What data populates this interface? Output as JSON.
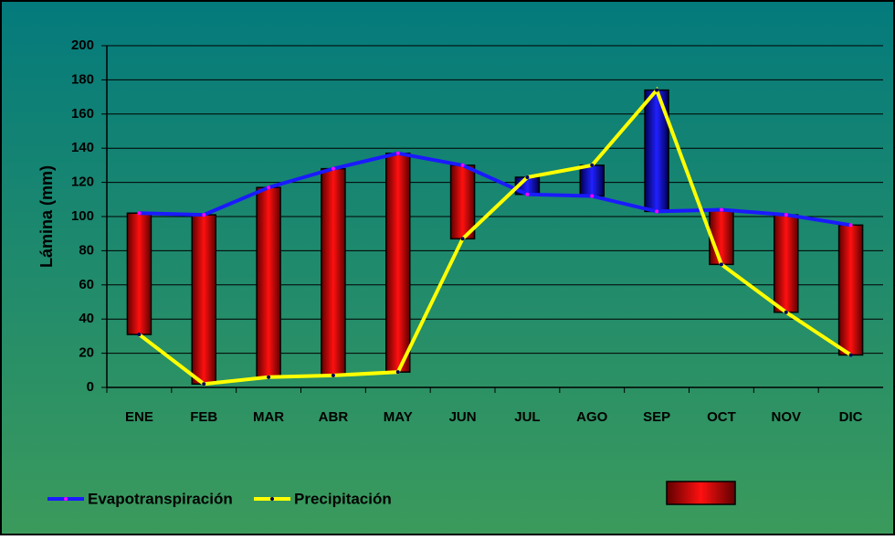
{
  "chart_data": {
    "type": "line",
    "categories": [
      "ENE",
      "FEB",
      "MAR",
      "ABR",
      "MAY",
      "JUN",
      "JUL",
      "AGO",
      "SEP",
      "OCT",
      "NOV",
      "DIC"
    ],
    "series": [
      {
        "name": "Evapotranspiración",
        "color": "#1a1aff",
        "values": [
          102,
          101,
          117,
          128,
          137,
          130,
          113,
          112,
          103,
          104,
          101,
          95
        ]
      },
      {
        "name": "Precipitación",
        "color": "#ffff00",
        "values": [
          31,
          2,
          6,
          7,
          9,
          87,
          123,
          130,
          174,
          72,
          44,
          19
        ]
      }
    ],
    "deficit_color": "#dd0000",
    "surplus_color": "#1010c0",
    "y_label": "Lámina (mm)",
    "ylim": [
      0,
      200
    ],
    "yticks": [
      0,
      20,
      40,
      60,
      80,
      100,
      120,
      140,
      160,
      180,
      200
    ],
    "grid": true
  }
}
